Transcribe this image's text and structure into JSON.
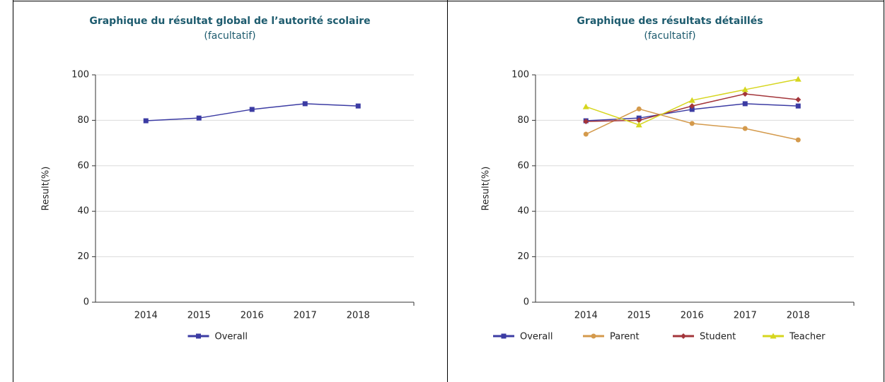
{
  "chart_data": [
    {
      "type": "line",
      "title": "Graphique du résultat global de l’autorité scolaire",
      "subtitle": "(facultatif)",
      "ylabel": "Result(%)",
      "categories": [
        "2014",
        "2015",
        "2016",
        "2017",
        "2018"
      ],
      "ylim": [
        0,
        100
      ],
      "yticks": [
        0,
        20,
        40,
        60,
        80,
        100
      ],
      "grid": true,
      "legend": "bottom",
      "series": [
        {
          "name": "Overall",
          "color": "#3b3ba3",
          "marker": "square",
          "values": [
            79.8,
            81,
            84.8,
            87.3,
            86.3
          ]
        }
      ]
    },
    {
      "type": "line",
      "title": "Graphique des résultats détaillés",
      "subtitle": "(facultatif)",
      "ylabel": "Result(%)",
      "categories": [
        "2014",
        "2015",
        "2016",
        "2017",
        "2018"
      ],
      "ylim": [
        0,
        100
      ],
      "yticks": [
        0,
        20,
        40,
        60,
        80,
        100
      ],
      "grid": true,
      "legend": "bottom",
      "series": [
        {
          "name": "Overall",
          "color": "#3b3ba3",
          "marker": "square",
          "values": [
            79.8,
            81,
            84.8,
            87.3,
            86.3
          ]
        },
        {
          "name": "Parent",
          "color": "#d49a4c",
          "marker": "circle",
          "values": [
            73.9,
            85,
            78.6,
            76.4,
            71.4
          ]
        },
        {
          "name": "Student",
          "color": "#a3353a",
          "marker": "diamond",
          "values": [
            79.5,
            80,
            86.3,
            91.6,
            89.1
          ]
        },
        {
          "name": "Teacher",
          "color": "#d6d61e",
          "marker": "triangle",
          "values": [
            86,
            78,
            88.8,
            93.5,
            98.1
          ]
        }
      ]
    }
  ]
}
